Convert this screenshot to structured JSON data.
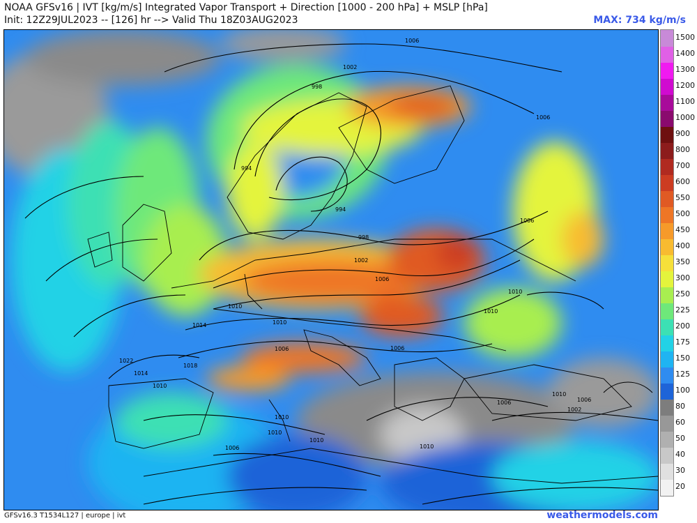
{
  "header": {
    "title_line1": "NOAA GFSv16 | IVT [kg/m/s] Integrated Vapor Transport + Direction [1000 - 200 hPa] + MSLP [hPa]",
    "title_line2": "Init: 12Z29JUL2023 -- [126] hr --> Valid Thu 18Z03AUG2023",
    "max_label": "MAX: 734 kg/m/s"
  },
  "footer": {
    "model_info": "GFSv16.3 T1534L127 | europe | ivt",
    "site": "weathermodels.com"
  },
  "colorbar": {
    "levels": [
      {
        "label": "20",
        "color": "#f2f2f2"
      },
      {
        "label": "30",
        "color": "#e0e0e0"
      },
      {
        "label": "40",
        "color": "#c8c8c8"
      },
      {
        "label": "50",
        "color": "#b0b0b0"
      },
      {
        "label": "60",
        "color": "#989898"
      },
      {
        "label": "80",
        "color": "#7d7d7d"
      },
      {
        "label": "100",
        "color": "#1e64d8"
      },
      {
        "label": "125",
        "color": "#2f8cf0"
      },
      {
        "label": "150",
        "color": "#1fb4f2"
      },
      {
        "label": "175",
        "color": "#22d2e6"
      },
      {
        "label": "200",
        "color": "#3ce0b4"
      },
      {
        "label": "225",
        "color": "#6ee87a"
      },
      {
        "label": "250",
        "color": "#a8ee50"
      },
      {
        "label": "300",
        "color": "#e4f43c"
      },
      {
        "label": "350",
        "color": "#f6e03a"
      },
      {
        "label": "400",
        "color": "#f8bb30"
      },
      {
        "label": "450",
        "color": "#f69a2a"
      },
      {
        "label": "500",
        "color": "#ee7626"
      },
      {
        "label": "550",
        "color": "#e05a24"
      },
      {
        "label": "600",
        "color": "#cc3c22"
      },
      {
        "label": "700",
        "color": "#b02a20"
      },
      {
        "label": "800",
        "color": "#8c1c1c"
      },
      {
        "label": "900",
        "color": "#6e1010"
      },
      {
        "label": "1000",
        "color": "#8a0a6e"
      },
      {
        "label": "1100",
        "color": "#a80a9a"
      },
      {
        "label": "1200",
        "color": "#d00ad0"
      },
      {
        "label": "1300",
        "color": "#f01af0"
      },
      {
        "label": "1400",
        "color": "#e060e6"
      },
      {
        "label": "1500",
        "color": "#c88ad8"
      }
    ]
  },
  "isobar_labels": [
    {
      "text": "1006"
    },
    {
      "text": "1002"
    },
    {
      "text": "998"
    },
    {
      "text": "994"
    },
    {
      "text": "994"
    },
    {
      "text": "998"
    },
    {
      "text": "1002"
    },
    {
      "text": "1006"
    },
    {
      "text": "1006"
    },
    {
      "text": "1006"
    },
    {
      "text": "1010"
    },
    {
      "text": "1010"
    },
    {
      "text": "1010"
    },
    {
      "text": "1014"
    },
    {
      "text": "1010"
    },
    {
      "text": "1006"
    },
    {
      "text": "1006"
    },
    {
      "text": "1022"
    },
    {
      "text": "1014"
    },
    {
      "text": "1018"
    },
    {
      "text": "1010"
    },
    {
      "text": "1010"
    },
    {
      "text": "1010"
    },
    {
      "text": "1010"
    },
    {
      "text": "1006"
    },
    {
      "text": "1006"
    },
    {
      "text": "1010"
    },
    {
      "text": "1006"
    },
    {
      "text": "1002"
    },
    {
      "text": "1010"
    }
  ],
  "colors": {
    "accent": "#3a5ae8",
    "ocean_base": "#3a8fd9"
  }
}
